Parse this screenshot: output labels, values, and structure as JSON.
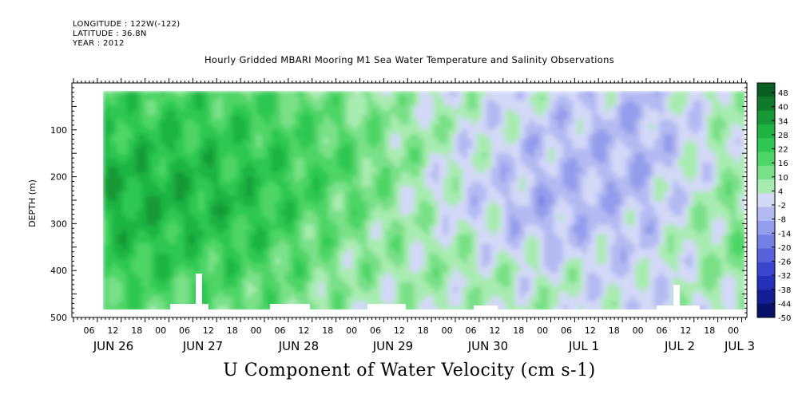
{
  "header": {
    "longitude": "LONGITUDE : 122W(-122)",
    "latitude": "LATITUDE : 36.8N",
    "year": "YEAR : 2012"
  },
  "chart_data": {
    "type": "heatmap",
    "title": "Hourly Gridded MBARI Mooring M1 Sea Water Temperature and Salinity Observations",
    "xlabel": "U Component of Water Velocity (cm s-1)",
    "ylabel": "DEPTH (m)",
    "x_axis": {
      "hour_ticks": [
        "06",
        "12",
        "18",
        "00",
        "06",
        "12",
        "18",
        "00",
        "06",
        "12",
        "18",
        "00",
        "06",
        "12",
        "18",
        "00",
        "06",
        "12",
        "18",
        "00",
        "06",
        "12",
        "18",
        "00",
        "06",
        "12",
        "18",
        "00"
      ],
      "day_labels": [
        "JUN 26",
        "JUN 27",
        "JUN 28",
        "JUN 29",
        "JUN 30",
        "JUL  1",
        "JUL  2",
        "JUL  3"
      ]
    },
    "y_axis": {
      "range": [
        0,
        500
      ],
      "ticks": [
        "100",
        "200",
        "300",
        "400",
        "500"
      ],
      "inverted": true
    },
    "colorbar": {
      "labels": [
        "48",
        "40",
        "34",
        "28",
        "22",
        "16",
        "10",
        "4",
        "-2",
        "-8",
        "-14",
        "-20",
        "-26",
        "-32",
        "-38",
        "-44",
        "-50"
      ],
      "colors_high_to_low": [
        "#0b5e22",
        "#0f7a2c",
        "#169936",
        "#1eb442",
        "#2ec752",
        "#4ed566",
        "#79e088",
        "#a8ebb0",
        "#d2d8f6",
        "#b3baf2",
        "#949dec",
        "#7580e5",
        "#5762dd",
        "#3b46cf",
        "#2530b8",
        "#141f96",
        "#0a1168"
      ]
    },
    "values_description_grid": {
      "depths_m": [
        25,
        100,
        175,
        250,
        325,
        400,
        475
      ],
      "days": [
        "JUN 26",
        "JUN 27",
        "JUN 28",
        "JUN 29",
        "JUN 30",
        "JUL  1",
        "JUL  2"
      ],
      "u_cm_s": [
        [
          20,
          18,
          10,
          2,
          0,
          -6,
          6
        ],
        [
          24,
          22,
          14,
          4,
          -4,
          -8,
          4
        ],
        [
          28,
          24,
          16,
          2,
          -6,
          -8,
          6
        ],
        [
          30,
          26,
          14,
          0,
          -8,
          -6,
          8
        ],
        [
          26,
          22,
          10,
          4,
          -6,
          -4,
          10
        ],
        [
          22,
          18,
          8,
          6,
          2,
          -2,
          8
        ],
        [
          16,
          14,
          6,
          4,
          4,
          -2,
          4
        ]
      ]
    }
  }
}
